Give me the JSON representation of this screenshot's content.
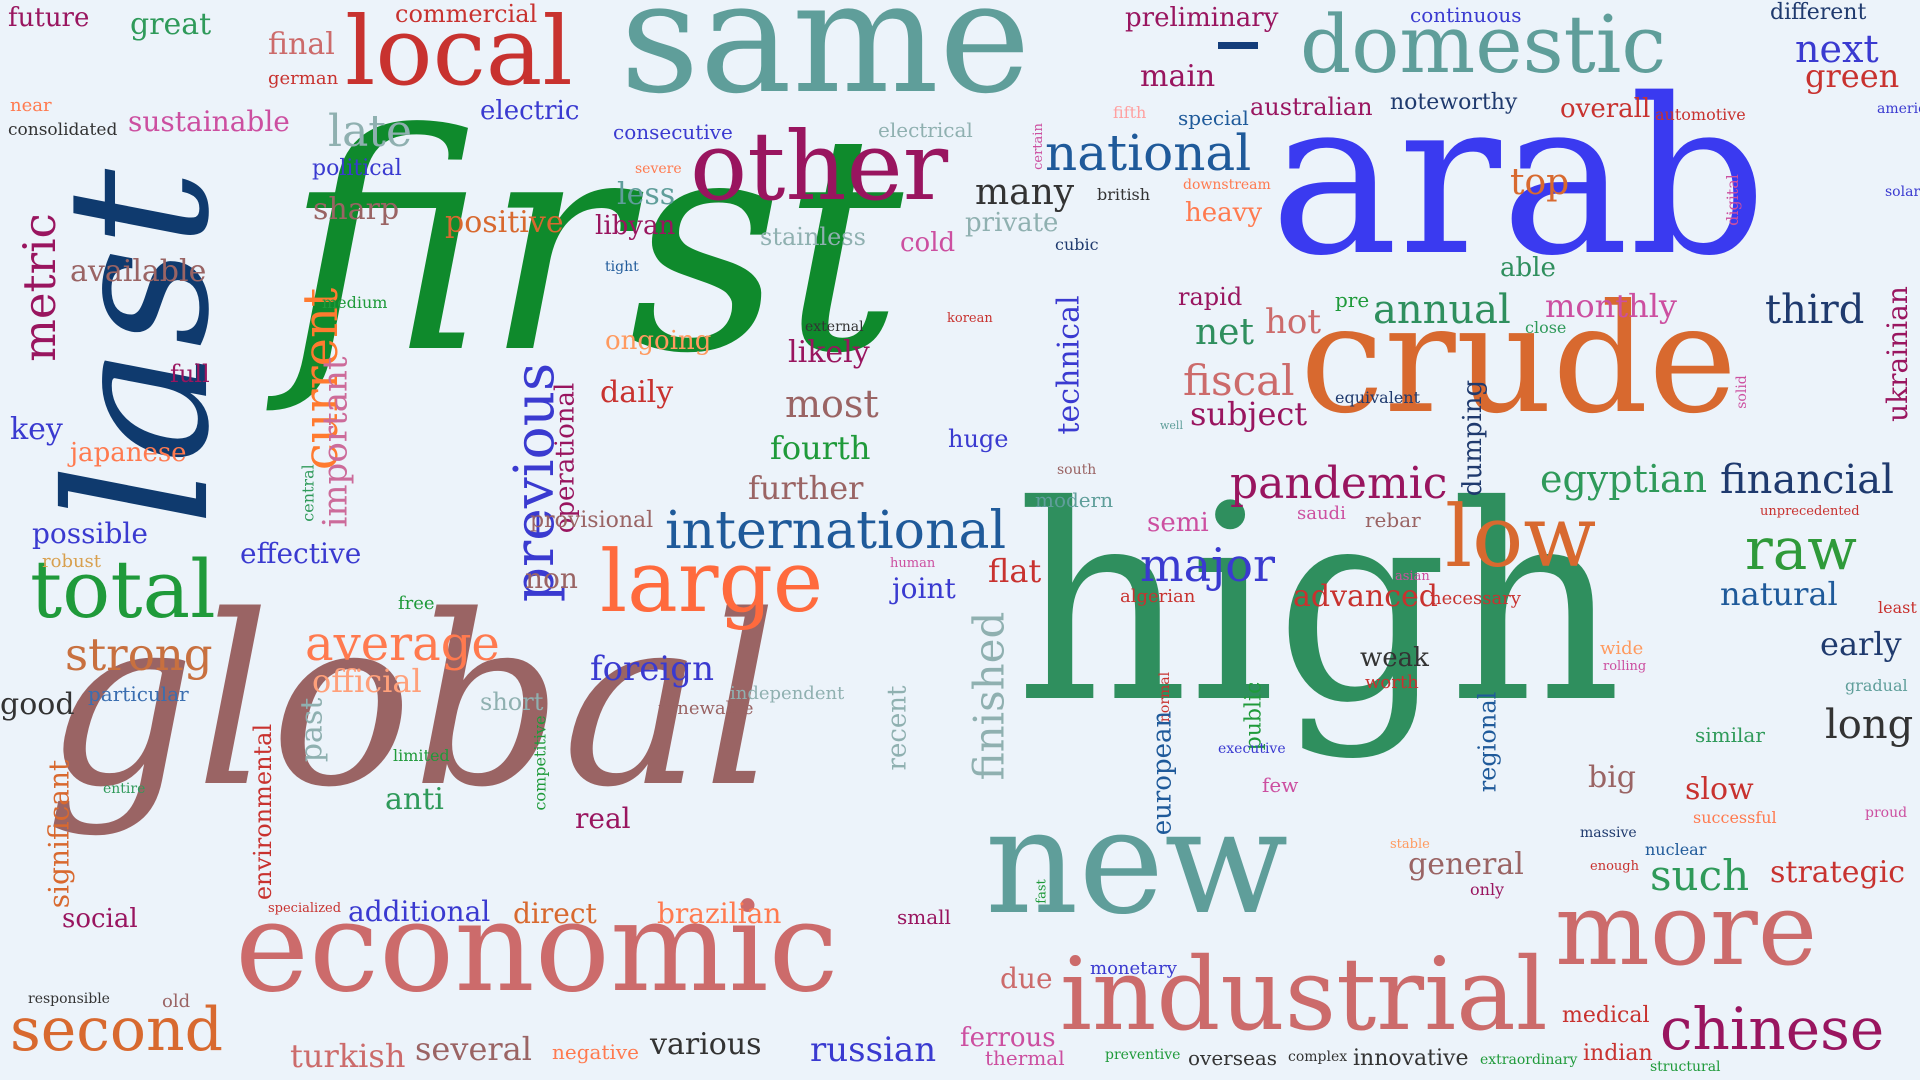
{
  "words": [
    {
      "text": "first",
      "color": "#0f8a2c"
    },
    {
      "text": "high",
      "color": "#2f8f5e"
    },
    {
      "text": "global",
      "color": "#9a6464"
    },
    {
      "text": "arab",
      "color": "#3a3af0"
    },
    {
      "text": "last",
      "color": "#0f3a6e"
    },
    {
      "text": "same",
      "color": "#5f9e9a"
    },
    {
      "text": "crude",
      "color": "#d8692f"
    },
    {
      "text": "new",
      "color": "#5f9e9a"
    },
    {
      "text": "economic",
      "color": "#cc6b6b"
    },
    {
      "text": "industrial",
      "color": "#cc6b6b"
    },
    {
      "text": "more",
      "color": "#cc6b6b"
    },
    {
      "text": "other",
      "color": "#99155f"
    },
    {
      "text": "domestic",
      "color": "#5f9e9a"
    },
    {
      "text": "local",
      "color": "#c8322f"
    },
    {
      "text": "large",
      "color": "#ff6a3d"
    },
    {
      "text": "low",
      "color": "#d8692f"
    },
    {
      "text": "total",
      "color": "#1f9a3a"
    },
    {
      "text": "international",
      "color": "#1f5a9a"
    },
    {
      "text": "previous",
      "color": "#3a3ad0"
    },
    {
      "text": "current",
      "color": "#ff7a2f"
    },
    {
      "text": "national",
      "color": "#1f5a9a"
    },
    {
      "text": "average",
      "color": "#ff7a4f"
    },
    {
      "text": "raw",
      "color": "#2f9a3a"
    },
    {
      "text": "chinese",
      "color": "#99155f"
    },
    {
      "text": "major",
      "color": "#3a3ad0"
    },
    {
      "text": "second",
      "color": "#d8692f"
    },
    {
      "text": "finished",
      "color": "#8fb0b0"
    },
    {
      "text": "strong",
      "color": "#c8703f"
    },
    {
      "text": "metric",
      "color": "#99155f"
    },
    {
      "text": "pandemic",
      "color": "#99155f"
    },
    {
      "text": "financial",
      "color": "#1f3a6e"
    },
    {
      "text": "such",
      "color": "#2f9a5a"
    },
    {
      "text": "egyptian",
      "color": "#2f9a5a"
    },
    {
      "text": "fiscal",
      "color": "#cc6b6b"
    },
    {
      "text": "annual",
      "color": "#2f8f5e"
    },
    {
      "text": "third",
      "color": "#1f3a6e"
    },
    {
      "text": "next",
      "color": "#3a3ad0"
    },
    {
      "text": "green",
      "color": "#c8322f"
    },
    {
      "text": "top",
      "color": "#d8692f"
    },
    {
      "text": "many",
      "color": "#333333"
    },
    {
      "text": "russian",
      "color": "#3a3ad0"
    },
    {
      "text": "various",
      "color": "#333333"
    },
    {
      "text": "several",
      "color": "#9a6464"
    },
    {
      "text": "turkish",
      "color": "#cc6b6b"
    },
    {
      "text": "natural",
      "color": "#1f5a9a"
    },
    {
      "text": "long",
      "color": "#333333"
    },
    {
      "text": "early",
      "color": "#1f3a6e"
    },
    {
      "text": "strategic",
      "color": "#c8322f"
    },
    {
      "text": "late",
      "color": "#8fb0b0"
    },
    {
      "text": "important",
      "color": "#cc6b9a"
    },
    {
      "text": "positive",
      "color": "#d8692f"
    },
    {
      "text": "most",
      "color": "#9a6464"
    },
    {
      "text": "fourth",
      "color": "#1f9a3a"
    },
    {
      "text": "further",
      "color": "#9a6464"
    },
    {
      "text": "likely",
      "color": "#99155f"
    },
    {
      "text": "daily",
      "color": "#c8322f"
    },
    {
      "text": "ongoing",
      "color": "#ff9a5f"
    },
    {
      "text": "technical",
      "color": "#3a3ad0"
    },
    {
      "text": "monthly",
      "color": "#cc4fa0"
    },
    {
      "text": "subject",
      "color": "#99155f"
    },
    {
      "text": "net",
      "color": "#2f8f5e"
    },
    {
      "text": "hot",
      "color": "#cc6b6b"
    },
    {
      "text": "rapid",
      "color": "#99155f"
    },
    {
      "text": "able",
      "color": "#2f8f5e"
    },
    {
      "text": "pre",
      "color": "#1f9a3a"
    },
    {
      "text": "close",
      "color": "#2f9a5a"
    },
    {
      "text": "ukrainian",
      "color": "#99155f"
    },
    {
      "text": "dumping",
      "color": "#1f3a6e"
    },
    {
      "text": "equivalent",
      "color": "#1f3a6e"
    },
    {
      "text": "solid",
      "color": "#cc4fa0"
    },
    {
      "text": "key",
      "color": "#3a3ad0"
    },
    {
      "text": "japanese",
      "color": "#ff7a4f"
    },
    {
      "text": "possible",
      "color": "#3a3ad0"
    },
    {
      "text": "robust",
      "color": "#d8a04f"
    },
    {
      "text": "effective",
      "color": "#3a3ad0"
    },
    {
      "text": "available",
      "color": "#9a6464"
    },
    {
      "text": "sharp",
      "color": "#9a6464"
    },
    {
      "text": "full",
      "color": "#99155f"
    },
    {
      "text": "medium",
      "color": "#1f9a3a"
    },
    {
      "text": "central",
      "color": "#2f9a5a"
    },
    {
      "text": "sustainable",
      "color": "#cc4fa0"
    },
    {
      "text": "political",
      "color": "#3a3ad0"
    },
    {
      "text": "great",
      "color": "#2f9a5a"
    },
    {
      "text": "final",
      "color": "#cc6b6b"
    },
    {
      "text": "german",
      "color": "#c8322f"
    },
    {
      "text": "future",
      "color": "#99155f"
    },
    {
      "text": "near",
      "color": "#ff7a4f"
    },
    {
      "text": "consolidated",
      "color": "#333333"
    },
    {
      "text": "commercial",
      "color": "#c8322f"
    },
    {
      "text": "electric",
      "color": "#3a3ad0"
    },
    {
      "text": "consecutive",
      "color": "#3a3ad0"
    },
    {
      "text": "electrical",
      "color": "#8fb0b0"
    },
    {
      "text": "preliminary",
      "color": "#99155f"
    },
    {
      "text": "main",
      "color": "#99155f"
    },
    {
      "text": "continuous",
      "color": "#3a3ad0"
    },
    {
      "text": "australian",
      "color": "#99155f"
    },
    {
      "text": "noteworthy",
      "color": "#1f3a6e"
    },
    {
      "text": "special",
      "color": "#1f5a9a"
    },
    {
      "text": "fifth",
      "color": "#ffa0a0"
    },
    {
      "text": "overall",
      "color": "#c8322f"
    },
    {
      "text": "automotive",
      "color": "#c8322f"
    },
    {
      "text": "different",
      "color": "#1f3a6e"
    },
    {
      "text": "american",
      "color": "#3a3ad0"
    },
    {
      "text": "solar",
      "color": "#3a3ad0"
    },
    {
      "text": "digital",
      "color": "#cc4fa0"
    },
    {
      "text": "certain",
      "color": "#cc4fa0"
    },
    {
      "text": "british",
      "color": "#333333"
    },
    {
      "text": "downstream",
      "color": "#ff7a4f"
    },
    {
      "text": "severe",
      "color": "#ff7a4f"
    },
    {
      "text": "less",
      "color": "#5f9e9a"
    },
    {
      "text": "libyan",
      "color": "#99155f"
    },
    {
      "text": "stainless",
      "color": "#8fb0b0"
    },
    {
      "text": "cold",
      "color": "#cc4fa0"
    },
    {
      "text": "private",
      "color": "#8fb0b0"
    },
    {
      "text": "heavy",
      "color": "#ff7a4f"
    },
    {
      "text": "cubic",
      "color": "#1f3a6e"
    },
    {
      "text": "tight",
      "color": "#1f5a9a"
    },
    {
      "text": "external",
      "color": "#333333"
    },
    {
      "text": "korean",
      "color": "#c8322f"
    },
    {
      "text": "operational",
      "color": "#99155f"
    },
    {
      "text": "provisional",
      "color": "#9a6464"
    },
    {
      "text": "non",
      "color": "#9a6464"
    },
    {
      "text": "joint",
      "color": "#3a3ad0"
    },
    {
      "text": "human",
      "color": "#cc4fa0"
    },
    {
      "text": "huge",
      "color": "#3a3ad0"
    },
    {
      "text": "south",
      "color": "#9a6464"
    },
    {
      "text": "modern",
      "color": "#5f9e9a"
    },
    {
      "text": "flat",
      "color": "#c8322f"
    },
    {
      "text": "semi",
      "color": "#cc4fa0"
    },
    {
      "text": "saudi",
      "color": "#cc4fa0"
    },
    {
      "text": "rebar",
      "color": "#9a6464"
    },
    {
      "text": "well",
      "color": "#5f9e9a"
    },
    {
      "text": "algerian",
      "color": "#c8322f"
    },
    {
      "text": "advanced",
      "color": "#c8322f"
    },
    {
      "text": "asian",
      "color": "#cc4fa0"
    },
    {
      "text": "necessary",
      "color": "#c8322f"
    },
    {
      "text": "unprecedented",
      "color": "#c8322f"
    },
    {
      "text": "least",
      "color": "#c8322f"
    },
    {
      "text": "free",
      "color": "#1f9a3a"
    },
    {
      "text": "foreign",
      "color": "#3a3ad0"
    },
    {
      "text": "official",
      "color": "#ffa07a"
    },
    {
      "text": "particular",
      "color": "#3a6eb0"
    },
    {
      "text": "good",
      "color": "#333333"
    },
    {
      "text": "independent",
      "color": "#8fb0b0"
    },
    {
      "text": "renewable",
      "color": "#9a6464"
    },
    {
      "text": "short",
      "color": "#8fb0b0"
    },
    {
      "text": "recent",
      "color": "#8fb0b0"
    },
    {
      "text": "competitive",
      "color": "#1f9a3a"
    },
    {
      "text": "limited",
      "color": "#1f9a3a"
    },
    {
      "text": "past",
      "color": "#8fb0b0"
    },
    {
      "text": "anti",
      "color": "#2f9a5a"
    },
    {
      "text": "real",
      "color": "#99155f"
    },
    {
      "text": "environmental",
      "color": "#c8322f"
    },
    {
      "text": "significant",
      "color": "#d8692f"
    },
    {
      "text": "entire",
      "color": "#2f9a5a"
    },
    {
      "text": "social",
      "color": "#99155f"
    },
    {
      "text": "specialized",
      "color": "#c8322f"
    },
    {
      "text": "additional",
      "color": "#3a3ad0"
    },
    {
      "text": "direct",
      "color": "#d8692f"
    },
    {
      "text": "brazilian",
      "color": "#ff7a4f"
    },
    {
      "text": "small",
      "color": "#99155f"
    },
    {
      "text": "responsible",
      "color": "#333333"
    },
    {
      "text": "old",
      "color": "#9a6464"
    },
    {
      "text": "negative",
      "color": "#ff7a4f"
    },
    {
      "text": "due",
      "color": "#cc6b6b"
    },
    {
      "text": "ferrous",
      "color": "#cc4fa0"
    },
    {
      "text": "thermal",
      "color": "#cc4fa0"
    },
    {
      "text": "monetary",
      "color": "#3a3ad0"
    },
    {
      "text": "preventive",
      "color": "#1f9a3a"
    },
    {
      "text": "overseas",
      "color": "#333333"
    },
    {
      "text": "complex",
      "color": "#333333"
    },
    {
      "text": "innovative",
      "color": "#333333"
    },
    {
      "text": "extraordinary",
      "color": "#1f9a3a"
    },
    {
      "text": "indian",
      "color": "#c8322f"
    },
    {
      "text": "structural",
      "color": "#1f9a3a"
    },
    {
      "text": "medical",
      "color": "#c8322f"
    },
    {
      "text": "fast",
      "color": "#1f9a3a"
    },
    {
      "text": "normal",
      "color": "#c8322f"
    },
    {
      "text": "european",
      "color": "#1f5a9a"
    },
    {
      "text": "public",
      "color": "#1f9a3a"
    },
    {
      "text": "executive",
      "color": "#3a3ad0"
    },
    {
      "text": "few",
      "color": "#cc4fa0"
    },
    {
      "text": "regional",
      "color": "#1f5a9a"
    },
    {
      "text": "weak",
      "color": "#333333"
    },
    {
      "text": "worth",
      "color": "#c8322f"
    },
    {
      "text": "wide",
      "color": "#ff9a5f"
    },
    {
      "text": "rolling",
      "color": "#cc4fa0"
    },
    {
      "text": "general",
      "color": "#9a6464"
    },
    {
      "text": "only",
      "color": "#99155f"
    },
    {
      "text": "stable",
      "color": "#ff9a5f"
    },
    {
      "text": "big",
      "color": "#9a6464"
    },
    {
      "text": "massive",
      "color": "#1f3a6e"
    },
    {
      "text": "nuclear",
      "color": "#1f5a9a"
    },
    {
      "text": "enough",
      "color": "#c8322f"
    },
    {
      "text": "similar",
      "color": "#2f9a5a"
    },
    {
      "text": "slow",
      "color": "#c8322f"
    },
    {
      "text": "successful",
      "color": "#ff7a4f"
    },
    {
      "text": "gradual",
      "color": "#5f9e9a"
    },
    {
      "text": "proud",
      "color": "#cc4fa0"
    }
  ]
}
